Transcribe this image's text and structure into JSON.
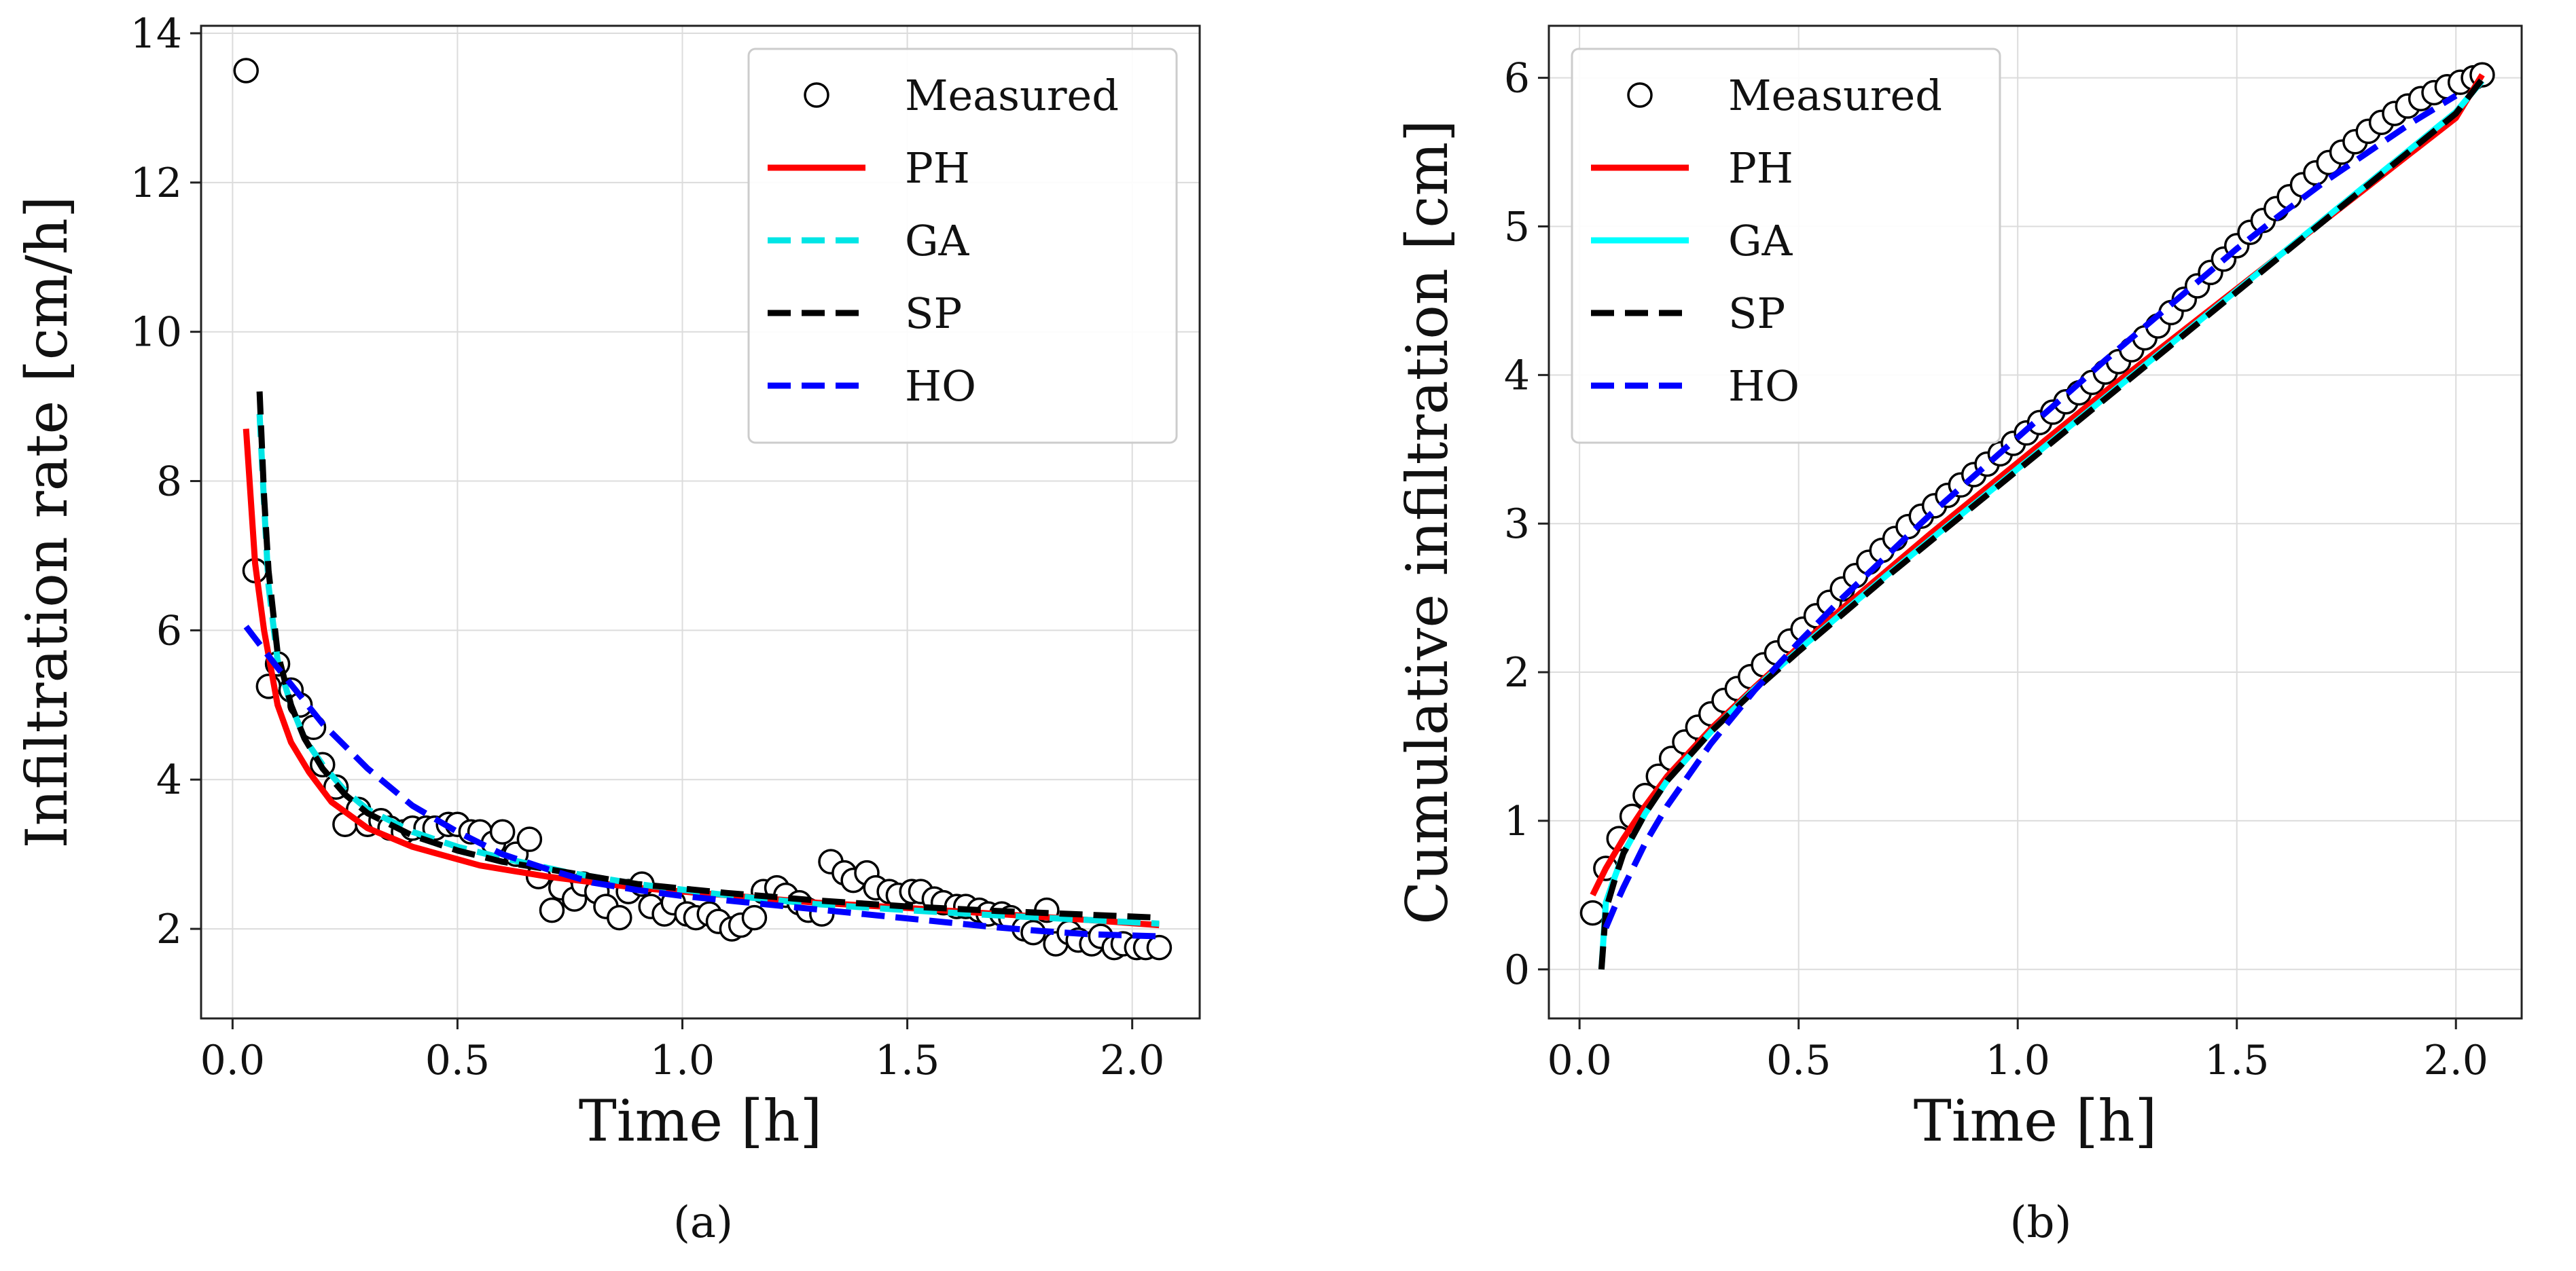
{
  "figure_captions": [
    "(a)",
    "(b)"
  ],
  "chart_data": [
    {
      "type": "scatter",
      "caption": "(a)",
      "title": "",
      "xlabel": "Time [h]",
      "ylabel": "Infiltration rate [cm/h]",
      "xlim": [
        -0.07,
        2.15
      ],
      "ylim": [
        0.8,
        14.1
      ],
      "xticks": [
        0.0,
        0.5,
        1.0,
        1.5,
        2.0
      ],
      "xtick_labels": [
        "0.0",
        "0.5",
        "1.0",
        "1.5",
        "2.0"
      ],
      "yticks": [
        2,
        4,
        6,
        8,
        10,
        12,
        14
      ],
      "ytick_labels": [
        "2",
        "4",
        "6",
        "8",
        "10",
        "12",
        "14"
      ],
      "grid": true,
      "legend_position": "top-right",
      "legend": [
        "Measured",
        "PH",
        "GA",
        "SP",
        "HO"
      ],
      "series": [
        {
          "name": "Measured",
          "kind": "markers",
          "color": "#000000",
          "x": [
            0.03,
            0.05,
            0.08,
            0.1,
            0.13,
            0.15,
            0.18,
            0.2,
            0.23,
            0.25,
            0.28,
            0.3,
            0.33,
            0.35,
            0.38,
            0.4,
            0.43,
            0.45,
            0.48,
            0.5,
            0.53,
            0.55,
            0.58,
            0.6,
            0.63,
            0.66,
            0.68,
            0.71,
            0.73,
            0.76,
            0.78,
            0.81,
            0.83,
            0.86,
            0.88,
            0.91,
            0.93,
            0.96,
            0.98,
            1.01,
            1.03,
            1.06,
            1.08,
            1.11,
            1.13,
            1.16,
            1.18,
            1.21,
            1.23,
            1.26,
            1.28,
            1.31,
            1.33,
            1.36,
            1.38,
            1.41,
            1.43,
            1.46,
            1.48,
            1.51,
            1.53,
            1.56,
            1.58,
            1.61,
            1.63,
            1.66,
            1.68,
            1.71,
            1.73,
            1.76,
            1.78,
            1.81,
            1.83,
            1.86,
            1.88,
            1.91,
            1.93,
            1.96,
            1.98,
            2.01,
            2.03,
            2.06
          ],
          "y": [
            13.5,
            6.8,
            5.25,
            5.55,
            5.2,
            5.0,
            4.7,
            4.2,
            3.9,
            3.4,
            3.6,
            3.4,
            3.45,
            3.35,
            3.3,
            3.35,
            3.35,
            3.35,
            3.4,
            3.4,
            3.3,
            3.3,
            3.15,
            3.3,
            3.0,
            3.2,
            2.7,
            2.25,
            2.55,
            2.4,
            2.6,
            2.5,
            2.3,
            2.15,
            2.5,
            2.6,
            2.3,
            2.2,
            2.35,
            2.2,
            2.15,
            2.2,
            2.1,
            2.0,
            2.05,
            2.15,
            2.5,
            2.55,
            2.45,
            2.35,
            2.25,
            2.2,
            2.9,
            2.75,
            2.65,
            2.75,
            2.55,
            2.5,
            2.45,
            2.5,
            2.5,
            2.4,
            2.35,
            2.3,
            2.3,
            2.25,
            2.2,
            2.2,
            2.15,
            2.0,
            1.95,
            2.25,
            1.8,
            1.95,
            1.85,
            1.8,
            1.9,
            1.75,
            1.8,
            1.75,
            1.75,
            1.75
          ]
        },
        {
          "name": "PH",
          "kind": "line",
          "style": "solid",
          "color": "#ff0000",
          "x": [
            0.03,
            0.05,
            0.07,
            0.1,
            0.13,
            0.17,
            0.22,
            0.3,
            0.4,
            0.55,
            0.7,
            0.9,
            1.1,
            1.3,
            1.5,
            1.7,
            1.9,
            2.06
          ],
          "y": [
            8.7,
            6.9,
            6.0,
            5.0,
            4.5,
            4.1,
            3.7,
            3.35,
            3.1,
            2.85,
            2.7,
            2.55,
            2.45,
            2.35,
            2.28,
            2.2,
            2.12,
            2.05
          ]
        },
        {
          "name": "GA",
          "kind": "line",
          "style": "dashed",
          "color": "#00e5e5",
          "x": [
            0.06,
            0.07,
            0.08,
            0.1,
            0.13,
            0.16,
            0.2,
            0.25,
            0.3,
            0.4,
            0.5,
            0.6,
            0.75,
            0.9,
            1.1,
            1.3,
            1.5,
            1.7,
            1.9,
            2.06
          ],
          "y": [
            8.9,
            7.7,
            6.6,
            5.6,
            5.0,
            4.55,
            4.2,
            3.85,
            3.6,
            3.3,
            3.1,
            2.95,
            2.75,
            2.6,
            2.45,
            2.33,
            2.25,
            2.18,
            2.12,
            2.07
          ]
        },
        {
          "name": "SP",
          "kind": "line",
          "style": "dashed",
          "color": "#000000",
          "x": [
            0.06,
            0.07,
            0.08,
            0.1,
            0.13,
            0.16,
            0.2,
            0.25,
            0.3,
            0.4,
            0.5,
            0.6,
            0.75,
            0.9,
            1.1,
            1.3,
            1.5,
            1.7,
            1.9,
            2.06
          ],
          "y": [
            9.2,
            7.8,
            6.8,
            5.7,
            5.0,
            4.55,
            4.15,
            3.8,
            3.55,
            3.25,
            3.05,
            2.9,
            2.75,
            2.6,
            2.48,
            2.38,
            2.3,
            2.24,
            2.19,
            2.15
          ]
        },
        {
          "name": "HO",
          "kind": "line",
          "style": "dashed",
          "color": "#0000ff",
          "x": [
            0.03,
            0.1,
            0.2,
            0.3,
            0.4,
            0.5,
            0.6,
            0.7,
            0.8,
            0.9,
            1.0,
            1.1,
            1.2,
            1.3,
            1.4,
            1.5,
            1.6,
            1.7,
            1.8,
            1.9,
            2.06
          ],
          "y": [
            6.05,
            5.5,
            4.75,
            4.15,
            3.65,
            3.3,
            3.0,
            2.8,
            2.62,
            2.52,
            2.44,
            2.38,
            2.32,
            2.26,
            2.2,
            2.14,
            2.08,
            2.02,
            1.97,
            1.93,
            1.9
          ]
        }
      ]
    },
    {
      "type": "scatter",
      "caption": "(b)",
      "title": "",
      "xlabel": "Time [h]",
      "ylabel": "Cumulative infiltration [cm]",
      "xlim": [
        -0.07,
        2.15
      ],
      "ylim": [
        -0.33,
        6.35
      ],
      "xticks": [
        0.0,
        0.5,
        1.0,
        1.5,
        2.0
      ],
      "xtick_labels": [
        "0.0",
        "0.5",
        "1.0",
        "1.5",
        "2.0"
      ],
      "yticks": [
        0,
        1,
        2,
        3,
        4,
        5,
        6
      ],
      "ytick_labels": [
        "0",
        "1",
        "2",
        "3",
        "4",
        "5",
        "6"
      ],
      "grid": true,
      "legend_position": "top-left",
      "legend": [
        "Measured",
        "PH",
        "GA",
        "SP",
        "HO"
      ],
      "series": [
        {
          "name": "Measured",
          "kind": "markers",
          "color": "#000000",
          "x": [
            0.03,
            0.06,
            0.09,
            0.12,
            0.15,
            0.18,
            0.21,
            0.24,
            0.27,
            0.3,
            0.33,
            0.36,
            0.39,
            0.42,
            0.45,
            0.48,
            0.51,
            0.54,
            0.57,
            0.6,
            0.63,
            0.66,
            0.69,
            0.72,
            0.75,
            0.78,
            0.81,
            0.84,
            0.87,
            0.9,
            0.93,
            0.96,
            0.99,
            1.02,
            1.05,
            1.08,
            1.11,
            1.14,
            1.17,
            1.2,
            1.23,
            1.26,
            1.29,
            1.32,
            1.35,
            1.38,
            1.41,
            1.44,
            1.47,
            1.5,
            1.53,
            1.56,
            1.59,
            1.62,
            1.65,
            1.68,
            1.71,
            1.74,
            1.77,
            1.8,
            1.83,
            1.86,
            1.89,
            1.92,
            1.95,
            1.98,
            2.01,
            2.04,
            2.06
          ],
          "y": [
            0.38,
            0.68,
            0.88,
            1.03,
            1.17,
            1.3,
            1.42,
            1.53,
            1.63,
            1.72,
            1.81,
            1.89,
            1.97,
            2.05,
            2.13,
            2.21,
            2.29,
            2.38,
            2.47,
            2.56,
            2.65,
            2.74,
            2.82,
            2.9,
            2.98,
            3.05,
            3.12,
            3.19,
            3.26,
            3.33,
            3.4,
            3.47,
            3.54,
            3.61,
            3.68,
            3.75,
            3.82,
            3.88,
            3.95,
            4.02,
            4.09,
            4.17,
            4.25,
            4.33,
            4.42,
            4.51,
            4.6,
            4.69,
            4.78,
            4.87,
            4.96,
            5.04,
            5.12,
            5.2,
            5.28,
            5.36,
            5.43,
            5.5,
            5.57,
            5.64,
            5.7,
            5.76,
            5.81,
            5.86,
            5.9,
            5.94,
            5.97,
            6.0,
            6.02
          ]
        },
        {
          "name": "PH",
          "kind": "line",
          "style": "solid",
          "color": "#ff0000",
          "x": [
            0.03,
            0.06,
            0.1,
            0.15,
            0.2,
            0.3,
            0.4,
            0.5,
            0.6,
            0.7,
            0.8,
            0.9,
            1.0,
            1.1,
            1.2,
            1.3,
            1.4,
            1.5,
            1.6,
            1.7,
            1.8,
            1.9,
            2.0,
            2.06
          ],
          "y": [
            0.5,
            0.68,
            0.88,
            1.1,
            1.3,
            1.62,
            1.9,
            2.17,
            2.43,
            2.68,
            2.93,
            3.17,
            3.41,
            3.65,
            3.89,
            4.12,
            4.35,
            4.58,
            4.81,
            5.04,
            5.27,
            5.5,
            5.73,
            6.02
          ]
        },
        {
          "name": "GA",
          "kind": "line",
          "style": "solid",
          "color": "#00ffff",
          "x": [
            0.05,
            0.06,
            0.08,
            0.1,
            0.15,
            0.2,
            0.3,
            0.4,
            0.5,
            0.6,
            0.7,
            0.8,
            0.9,
            1.0,
            1.1,
            1.2,
            1.3,
            1.4,
            1.5,
            1.6,
            1.7,
            1.8,
            1.9,
            2.0,
            2.06
          ],
          "y": [
            0.0,
            0.45,
            0.62,
            0.78,
            1.05,
            1.27,
            1.6,
            1.89,
            2.15,
            2.4,
            2.65,
            2.89,
            3.13,
            3.37,
            3.61,
            3.85,
            4.09,
            4.33,
            4.57,
            4.81,
            5.05,
            5.29,
            5.53,
            5.77,
            5.98
          ]
        },
        {
          "name": "SP",
          "kind": "line",
          "style": "dashed",
          "color": "#000000",
          "x": [
            0.05,
            0.06,
            0.08,
            0.1,
            0.15,
            0.2,
            0.3,
            0.4,
            0.5,
            0.6,
            0.7,
            0.8,
            0.9,
            1.0,
            1.1,
            1.2,
            1.3,
            1.4,
            1.5,
            1.6,
            1.7,
            1.8,
            1.9,
            2.0,
            2.06
          ],
          "y": [
            0.0,
            0.4,
            0.6,
            0.78,
            1.05,
            1.27,
            1.6,
            1.88,
            2.14,
            2.39,
            2.64,
            2.88,
            3.12,
            3.36,
            3.6,
            3.84,
            4.08,
            4.32,
            4.56,
            4.8,
            5.04,
            5.28,
            5.52,
            5.76,
            5.99
          ]
        },
        {
          "name": "HO",
          "kind": "line",
          "style": "dashed",
          "color": "#0000ff",
          "x": [
            0.06,
            0.08,
            0.1,
            0.15,
            0.2,
            0.3,
            0.4,
            0.5,
            0.6,
            0.7,
            0.8,
            0.9,
            1.0,
            1.1,
            1.2,
            1.3,
            1.4,
            1.5,
            1.6,
            1.7,
            1.8,
            1.9,
            2.0
          ],
          "y": [
            0.28,
            0.42,
            0.55,
            0.85,
            1.1,
            1.52,
            1.88,
            2.2,
            2.5,
            2.78,
            3.06,
            3.32,
            3.58,
            3.84,
            4.1,
            4.35,
            4.6,
            4.85,
            5.08,
            5.3,
            5.5,
            5.7,
            5.88
          ]
        }
      ]
    }
  ]
}
